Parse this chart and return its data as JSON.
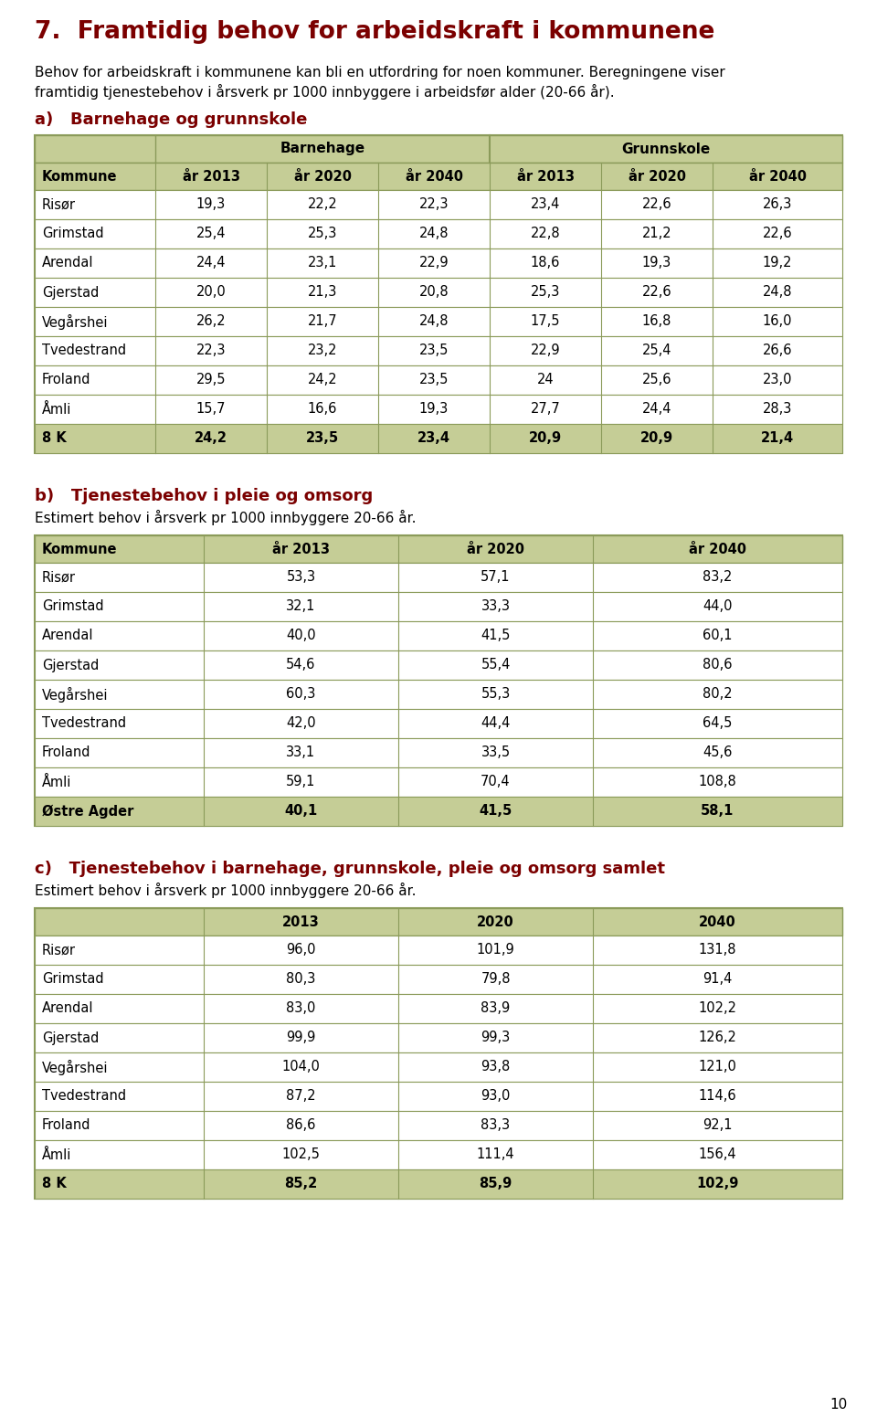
{
  "page_title": "7.  Framtidig behov for arbeidskraft i kommunene",
  "page_title_color": "#7B0000",
  "intro_line1": "Behov for arbeidskraft i kommunene kan bli en utfordring for noen kommuner. Beregningene viser",
  "intro_line2": "framtidig tjenestebehov i årsverk pr 1000 innbyggere i arbeidsfør alder (20-66 år).",
  "section_a_title": "a)   Barnehage og grunnskole",
  "section_a_color": "#7B0000",
  "table_a_barnehage_header": "Barnehage",
  "table_a_grunnskole_header": "Grunnskole",
  "table_a_col0_header": "Kommune",
  "table_a_year_headers": [
    "år 2013",
    "år 2020",
    "år 2040",
    "år 2013",
    "år 2020",
    "år 2040"
  ],
  "table_a_rows": [
    [
      "Risør",
      "19,3",
      "22,2",
      "22,3",
      "23,4",
      "22,6",
      "26,3"
    ],
    [
      "Grimstad",
      "25,4",
      "25,3",
      "24,8",
      "22,8",
      "21,2",
      "22,6"
    ],
    [
      "Arendal",
      "24,4",
      "23,1",
      "22,9",
      "18,6",
      "19,3",
      "19,2"
    ],
    [
      "Gjerstad",
      "20,0",
      "21,3",
      "20,8",
      "25,3",
      "22,6",
      "24,8"
    ],
    [
      "Vegårshei",
      "26,2",
      "21,7",
      "24,8",
      "17,5",
      "16,8",
      "16,0"
    ],
    [
      "Tvedestrand",
      "22,3",
      "23,2",
      "23,5",
      "22,9",
      "25,4",
      "26,6"
    ],
    [
      "Froland",
      "29,5",
      "24,2",
      "23,5",
      "24",
      "25,6",
      "23,0"
    ],
    [
      "Åmli",
      "15,7",
      "16,6",
      "19,3",
      "27,7",
      "24,4",
      "28,3"
    ],
    [
      "8 K",
      "24,2",
      "23,5",
      "23,4",
      "20,9",
      "20,9",
      "21,4"
    ]
  ],
  "section_b_title": "b)   Tjenestebehov i pleie og omsorg",
  "section_b_color": "#7B0000",
  "section_b_subtext": "Estimert behov i årsverk pr 1000 innbyggere 20-66 år.",
  "table_b_col0_header": "Kommune",
  "table_b_year_headers": [
    "år 2013",
    "år 2020",
    "år 2040"
  ],
  "table_b_rows": [
    [
      "Risør",
      "53,3",
      "57,1",
      "83,2"
    ],
    [
      "Grimstad",
      "32,1",
      "33,3",
      "44,0"
    ],
    [
      "Arendal",
      "40,0",
      "41,5",
      "60,1"
    ],
    [
      "Gjerstad",
      "54,6",
      "55,4",
      "80,6"
    ],
    [
      "Vegårshei",
      "60,3",
      "55,3",
      "80,2"
    ],
    [
      "Tvedestrand",
      "42,0",
      "44,4",
      "64,5"
    ],
    [
      "Froland",
      "33,1",
      "33,5",
      "45,6"
    ],
    [
      "Åmli",
      "59,1",
      "70,4",
      "108,8"
    ],
    [
      "Østre Agder",
      "40,1",
      "41,5",
      "58,1"
    ]
  ],
  "section_c_title": "c)   Tjenestebehov i barnehage, grunnskole, pleie og omsorg samlet",
  "section_c_color": "#7B0000",
  "section_c_subtext": "Estimert behov i årsverk pr 1000 innbyggere 20-66 år.",
  "table_c_year_headers": [
    "2013",
    "2020",
    "2040"
  ],
  "table_c_rows": [
    [
      "Risør",
      "96,0",
      "101,9",
      "131,8"
    ],
    [
      "Grimstad",
      "80,3",
      "79,8",
      "91,4"
    ],
    [
      "Arendal",
      "83,0",
      "83,9",
      "102,2"
    ],
    [
      "Gjerstad",
      "99,9",
      "99,3",
      "126,2"
    ],
    [
      "Vegårshei",
      "104,0",
      "93,8",
      "121,0"
    ],
    [
      "Tvedestrand",
      "87,2",
      "93,0",
      "114,6"
    ],
    [
      "Froland",
      "86,6",
      "83,3",
      "92,1"
    ],
    [
      "Åmli",
      "102,5",
      "111,4",
      "156,4"
    ],
    [
      "8 K",
      "85,2",
      "85,9",
      "102,9"
    ]
  ],
  "page_number": "10",
  "bg_color": "#FFFFFF",
  "text_color": "#000000",
  "header_bg": "#C5CD96",
  "border_color": "#8B9B5A",
  "last_row_bg": "#C5CD96"
}
